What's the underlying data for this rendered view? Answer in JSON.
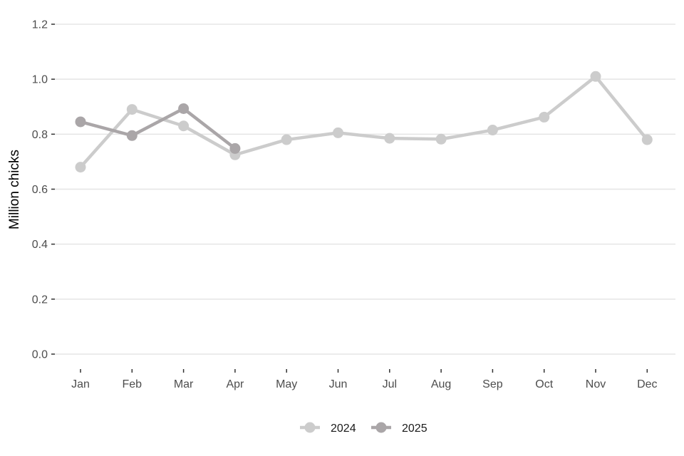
{
  "chart_data": {
    "type": "line",
    "title": "",
    "xlabel": "",
    "ylabel": "Million chicks",
    "categories": [
      "Jan",
      "Feb",
      "Mar",
      "Apr",
      "May",
      "Jun",
      "Jul",
      "Aug",
      "Sep",
      "Oct",
      "Nov",
      "Dec"
    ],
    "yticks": [
      "0.0",
      "0.2",
      "0.4",
      "0.6",
      "0.8",
      "1.0",
      "1.2"
    ],
    "ylim": [
      0,
      1.2
    ],
    "grid": true,
    "legend_position": "bottom",
    "series": [
      {
        "name": "2024",
        "color": "#cccccc",
        "values": [
          0.68,
          0.89,
          0.83,
          0.725,
          0.78,
          0.805,
          0.785,
          0.782,
          0.815,
          0.862,
          1.01,
          0.78
        ]
      },
      {
        "name": "2025",
        "color": "#aaa6a8",
        "values": [
          0.845,
          0.795,
          0.893,
          0.748,
          null,
          null,
          null,
          null,
          null,
          null,
          null,
          null
        ]
      }
    ]
  }
}
